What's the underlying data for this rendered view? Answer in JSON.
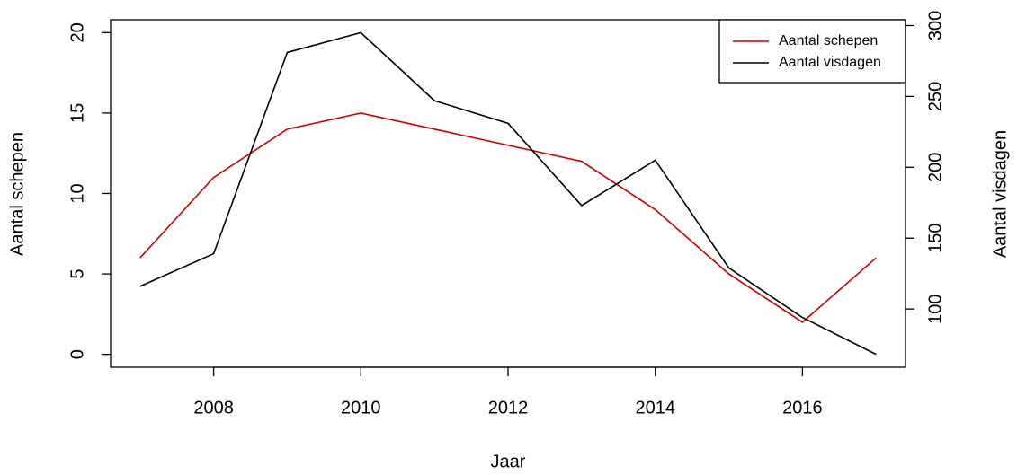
{
  "chart_data": {
    "type": "line",
    "x_label": "Jaar",
    "y_label": "Aantal schepen",
    "y2_label": "Aantal visdagen",
    "x": [
      2007,
      2008,
      2009,
      2010,
      2011,
      2012,
      2013,
      2014,
      2015,
      2016,
      2017
    ],
    "series": [
      {
        "name": "Aantal schepen",
        "color": "#cd0000",
        "values": [
          6,
          11,
          14,
          15,
          14,
          13,
          12,
          9,
          5,
          2,
          6
        ]
      },
      {
        "name": "Aantal visdagen",
        "color": "#000000",
        "axis": "y2",
        "values": [
          116,
          139,
          281,
          295,
          247,
          231,
          173,
          205,
          129,
          94,
          68
        ]
      }
    ],
    "xlim": [
      2006.6,
      2017.4
    ],
    "xticks": [
      2008,
      2010,
      2012,
      2014,
      2016
    ],
    "ylim": [
      -0.8,
      20.8
    ],
    "yticks": [
      0,
      5,
      10,
      15,
      20
    ],
    "y2lim": [
      58.9,
      304.1
    ],
    "y2ticks": [
      100,
      150,
      200,
      250,
      300
    ],
    "legend": "top-right",
    "grid": false
  }
}
